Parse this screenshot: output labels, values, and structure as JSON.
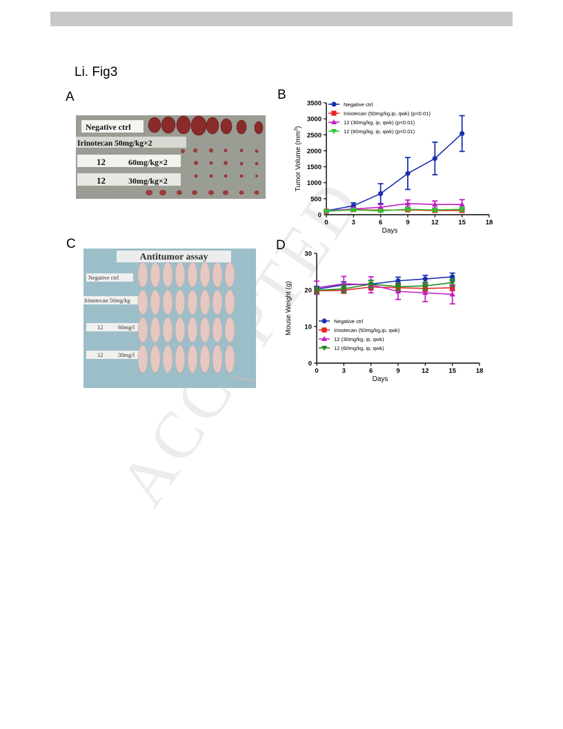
{
  "page": {
    "header_bar_color": "#c8c8c8",
    "figure_title": "Li. Fig3",
    "watermark": "ACCEPTED"
  },
  "panels": {
    "A": {
      "label": "A",
      "photo_labels": [
        "Negative ctrl",
        "Irinotecan 50mg/kg×2",
        "12",
        "60mg/kg×2",
        "12",
        "30mg/kg×2"
      ]
    },
    "B": {
      "label": "B"
    },
    "C": {
      "label": "C",
      "photo_title": "Antitumor assay",
      "photo_labels": [
        "Negative ctrl",
        "Irinotecan 50mg/kg",
        "12",
        "60mg/l",
        "12",
        "30mg/l"
      ]
    },
    "D": {
      "label": "D"
    }
  },
  "chart_data": [
    {
      "id": "B",
      "type": "line",
      "title": "",
      "xlabel": "Days",
      "ylabel": "Tumor Volume (mm3)",
      "xlim": [
        0,
        18
      ],
      "ylim": [
        0,
        3500
      ],
      "xticks": [
        0,
        3,
        6,
        9,
        12,
        15,
        18
      ],
      "yticks": [
        0,
        500,
        1000,
        1500,
        2000,
        2500,
        3000,
        3500
      ],
      "legend_position": "top-left",
      "x": [
        0,
        3,
        6,
        9,
        12,
        15
      ],
      "series": [
        {
          "name": "Negative ctrl",
          "color": "#1a2fb0",
          "marker": "circle",
          "values": [
            120,
            280,
            660,
            1290,
            1760,
            2540
          ],
          "errors": [
            30,
            90,
            310,
            500,
            510,
            560
          ]
        },
        {
          "name": "Irinotecan (50mg/kg,ip, qwk) (p<0.01)",
          "color": "#e8231f",
          "marker": "square",
          "values": [
            110,
            160,
            140,
            150,
            130,
            130
          ],
          "errors": [
            20,
            30,
            30,
            40,
            40,
            40
          ]
        },
        {
          "name": "12 (30mg/kg, ip, qwk) (p<0.01)",
          "color": "#c21fc2",
          "marker": "triangle-up",
          "values": [
            115,
            180,
            230,
            350,
            320,
            320
          ],
          "errors": [
            20,
            50,
            90,
            110,
            110,
            150
          ]
        },
        {
          "name": "12 (60mg/kg, ip, qwk) (p<0.01)",
          "color": "#2ec42e",
          "marker": "triangle-down",
          "values": [
            110,
            150,
            120,
            170,
            150,
            170
          ],
          "errors": [
            20,
            30,
            30,
            50,
            50,
            60
          ]
        }
      ]
    },
    {
      "id": "D",
      "type": "line",
      "title": "",
      "xlabel": "Days",
      "ylabel": "Mouse Weight (g)",
      "xlim": [
        0,
        18
      ],
      "ylim": [
        0,
        30
      ],
      "xticks": [
        0,
        3,
        6,
        9,
        12,
        15,
        18
      ],
      "yticks": [
        0,
        10,
        20,
        30
      ],
      "legend_position": "bottom-left",
      "x": [
        0,
        3,
        6,
        9,
        12,
        15
      ],
      "series": [
        {
          "name": "Negative ctrl",
          "color": "#1a2fb0",
          "marker": "circle",
          "values": [
            20.2,
            21.4,
            21.6,
            22.5,
            23.0,
            23.6
          ],
          "errors": [
            0.8,
            0.8,
            1.0,
            1.0,
            1.0,
            1.0
          ]
        },
        {
          "name": "Irinotecan (50mg/kg,ip, qwk)",
          "color": "#e8231f",
          "marker": "square",
          "values": [
            19.8,
            19.9,
            20.8,
            20.6,
            20.4,
            20.6
          ],
          "errors": [
            0.6,
            0.8,
            0.8,
            0.8,
            0.8,
            0.8
          ]
        },
        {
          "name": "12 (30mg/kg, ip, qwk)",
          "color": "#c21fc2",
          "marker": "triangle-up",
          "values": [
            20.6,
            21.7,
            21.4,
            19.6,
            19.2,
            18.8
          ],
          "errors": [
            1.8,
            2.0,
            2.2,
            2.2,
            2.4,
            2.6
          ]
        },
        {
          "name": "12 (60mg/kg, ip, qwk)",
          "color": "#1f8a1f",
          "marker": "triangle-down",
          "values": [
            19.9,
            20.3,
            21.6,
            20.9,
            21.1,
            22.0
          ],
          "errors": [
            0.8,
            1.0,
            1.0,
            1.0,
            1.0,
            1.0
          ]
        }
      ]
    }
  ]
}
